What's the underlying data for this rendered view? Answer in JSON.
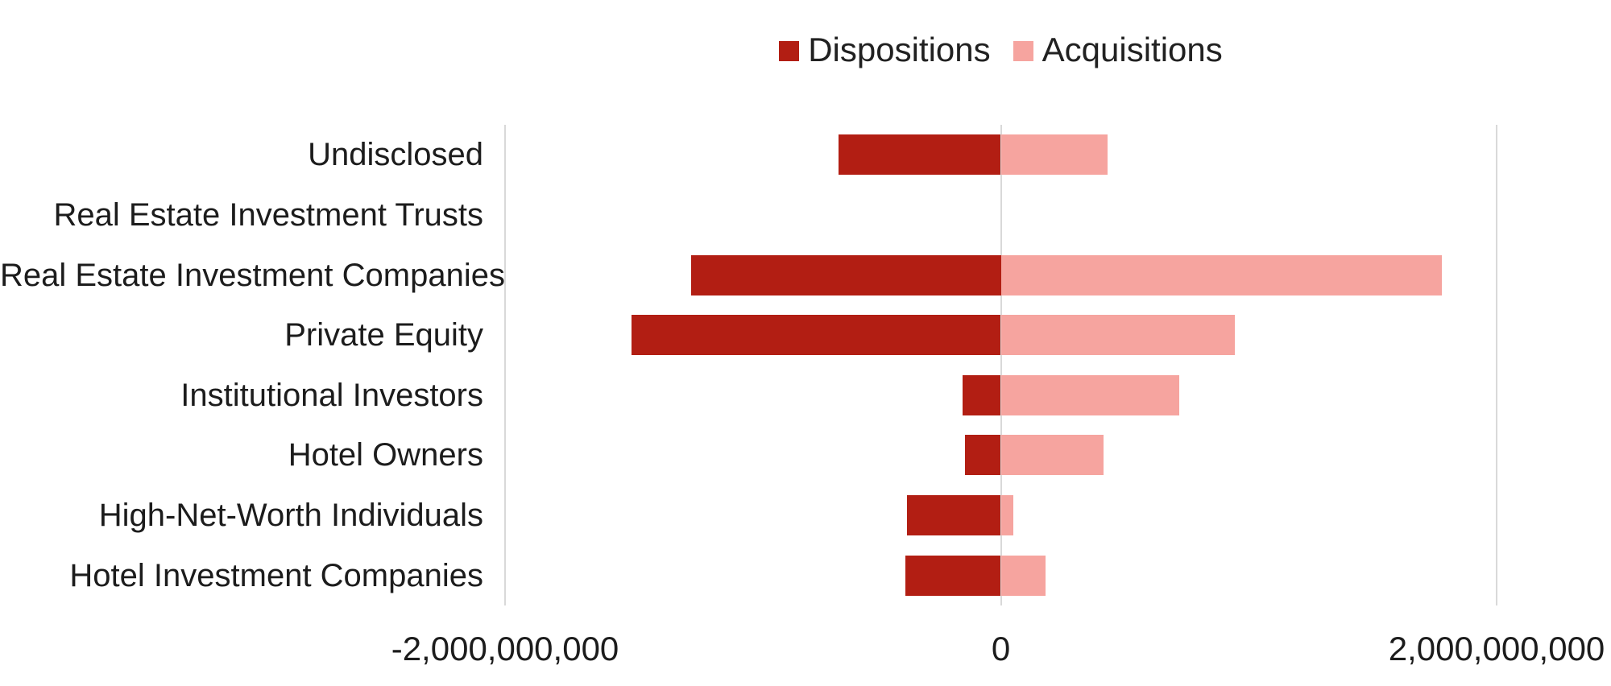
{
  "legend": {
    "items": [
      {
        "label": "Dispositions",
        "color": "#b21e13"
      },
      {
        "label": "Acquisitions",
        "color": "#f6a49f"
      }
    ]
  },
  "chart_data": {
    "type": "bar",
    "orientation": "horizontal-diverging",
    "title": "",
    "xlabel": "",
    "ylabel": "",
    "categories": [
      "Undisclosed",
      "Real Estate Investment Trusts",
      "Real Estate Investment Companies",
      "Private Equity",
      "Institutional Investors",
      "Hotel Owners",
      "High-Net-Worth Individuals",
      "Hotel Investment Companies"
    ],
    "series": [
      {
        "name": "Dispositions",
        "color": "#b21e13",
        "values": [
          -655000000,
          0,
          -1250000000,
          -1490000000,
          -155000000,
          -145000000,
          -380000000,
          -385000000
        ]
      },
      {
        "name": "Acquisitions",
        "color": "#f6a49f",
        "values": [
          430000000,
          0,
          1780000000,
          945000000,
          720000000,
          415000000,
          50000000,
          180000000
        ]
      }
    ],
    "xlim": [
      -2000000000,
      2000000000
    ],
    "x_ticks": [
      {
        "value": -2000000000,
        "label": "-2,000,000,000"
      },
      {
        "value": 0,
        "label": "0"
      },
      {
        "value": 2000000000,
        "label": "2,000,000,000"
      }
    ],
    "grid": "vertical-at-ticks",
    "legend_position": "top-center"
  },
  "colors": {
    "gridline": "#d9d9d9",
    "text": "#1c1c1c",
    "background": "#ffffff"
  }
}
